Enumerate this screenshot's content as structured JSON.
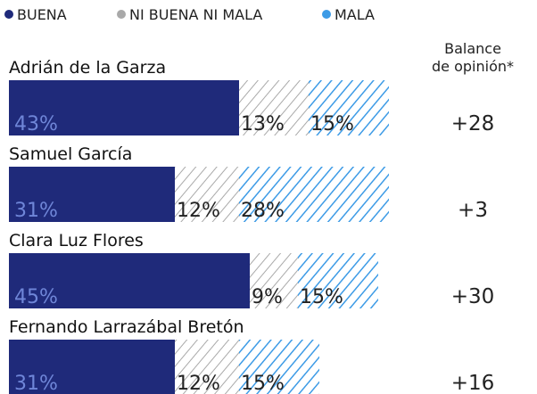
{
  "chart_data": {
    "type": "stacked-barh",
    "categories": [
      "Adrián de la Garza",
      "Samuel García",
      "Clara Luz Flores",
      "Fernando Larrazábal Bretón"
    ],
    "series": [
      {
        "name": "BUENA",
        "color": "#1f2a7a",
        "values": [
          43,
          31,
          45,
          31
        ],
        "value_labels": [
          "43%",
          "31%",
          "45%",
          "31%"
        ]
      },
      {
        "name": "NI BUENA NI MALA",
        "color": "#a9a9a9",
        "values": [
          13,
          12,
          9,
          12
        ],
        "value_labels": [
          "13%",
          "12%",
          "9%",
          "12%"
        ]
      },
      {
        "name": "MALA",
        "color": "#3d9be6",
        "values": [
          15,
          28,
          15,
          15
        ],
        "value_labels": [
          "15%",
          "28%",
          "15%",
          "15%"
        ]
      }
    ],
    "balance_header": [
      "Balance",
      "de opinión*"
    ],
    "balance": {
      "values": [
        28,
        3,
        30,
        16
      ],
      "value_labels": [
        "+28",
        "+3",
        "+30",
        "+16"
      ]
    }
  }
}
